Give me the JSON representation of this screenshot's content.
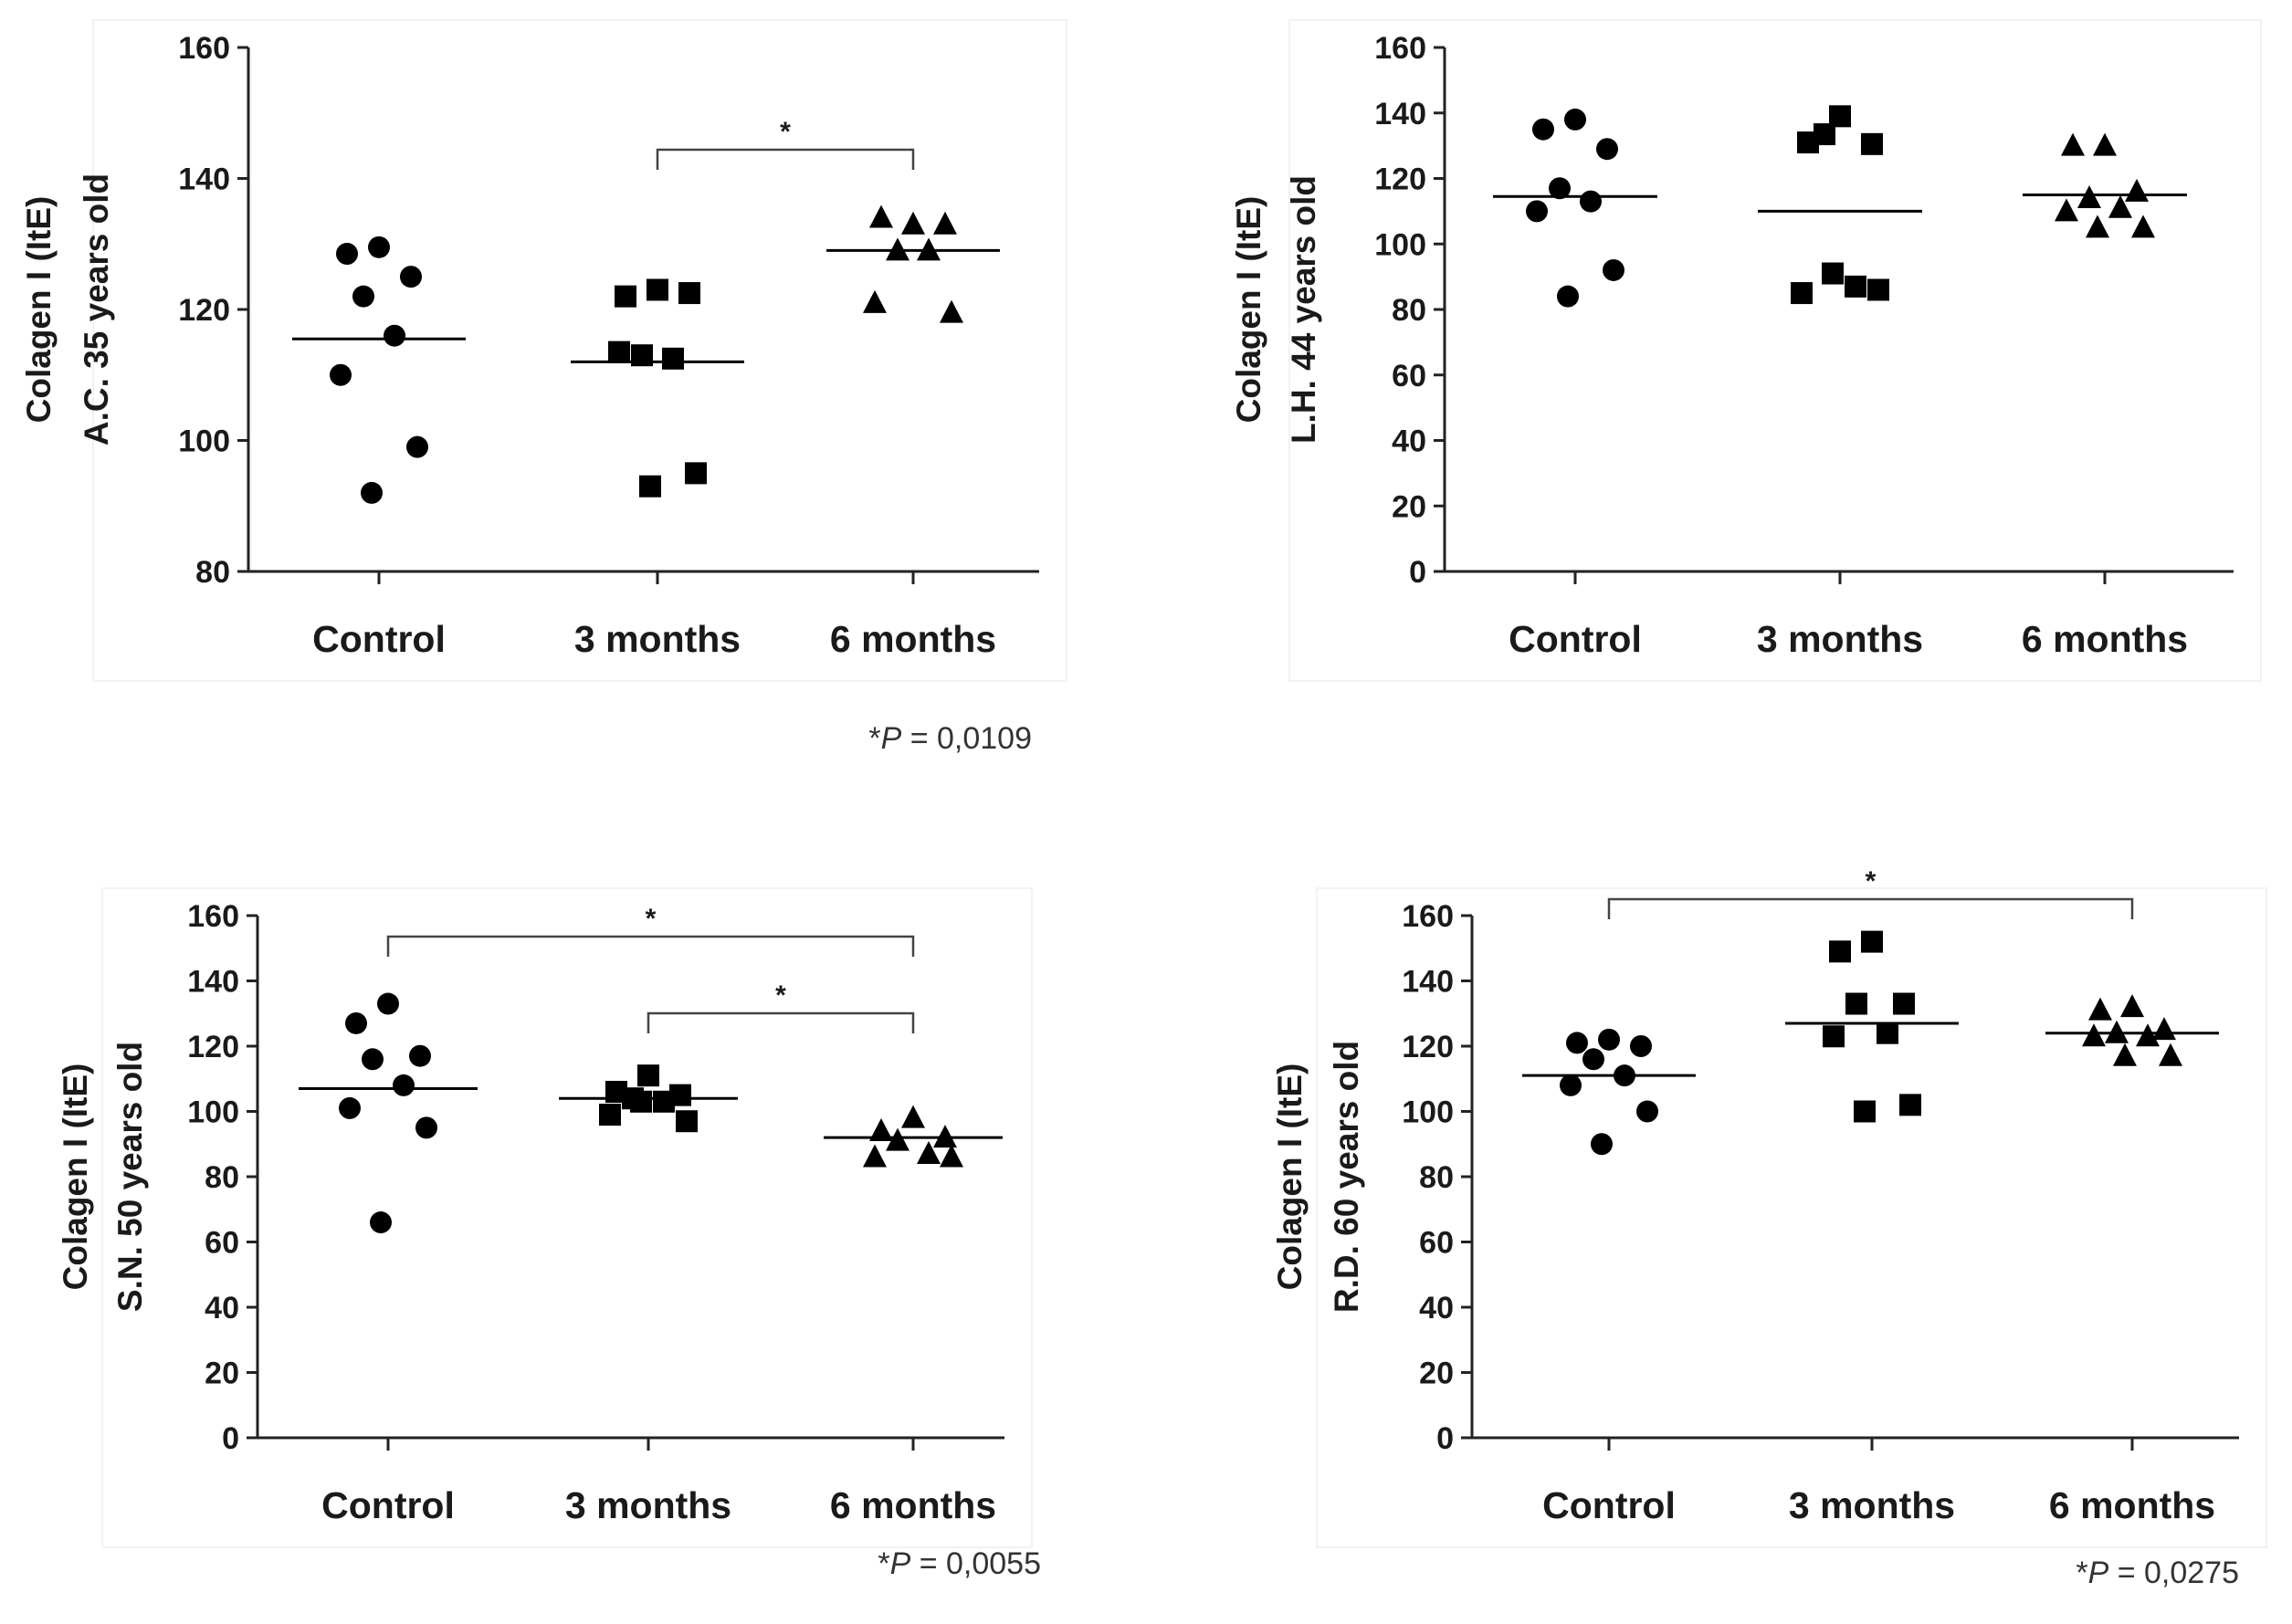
{
  "chart_data": [
    {
      "type": "scatter",
      "ylabel": [
        "Colagen I (ItE)",
        "A.C. 35 years old"
      ],
      "yticks": [
        "80",
        "100",
        "120",
        "140",
        "160"
      ],
      "ylim": [
        80,
        160
      ],
      "categories": [
        "Control",
        "3 months",
        "6 months"
      ],
      "series": [
        {
          "category": "Control",
          "marker": "circle",
          "values": [
            129.5,
            128.5,
            125,
            122,
            116,
            110,
            99,
            92
          ],
          "mean": 115.5
        },
        {
          "category": "3 months",
          "marker": "square",
          "values": [
            123,
            122,
            122.5,
            113,
            112.5,
            113.5,
            95,
            93
          ],
          "mean": 112
        },
        {
          "category": "6 months",
          "marker": "triangle",
          "values": [
            133,
            134,
            133,
            129,
            129,
            121,
            119.5
          ],
          "mean": 129
        }
      ],
      "significance": [
        {
          "from": "3 months",
          "to": "6 months",
          "label": "*"
        }
      ],
      "footnote": {
        "prefix": "*",
        "p": "P",
        "rest": " = 0,0109"
      }
    },
    {
      "type": "scatter",
      "ylabel": [
        "Colagen I (ItE)",
        "L.H. 44  years old"
      ],
      "yticks": [
        "0",
        "20",
        "40",
        "60",
        "80",
        "100",
        "120",
        "140",
        "160"
      ],
      "ylim": [
        0,
        160
      ],
      "categories": [
        "Control",
        "3 months",
        "6 months"
      ],
      "series": [
        {
          "category": "Control",
          "marker": "circle",
          "values": [
            138,
            135,
            129,
            117,
            113,
            110,
            92,
            84
          ],
          "mean": 114.5
        },
        {
          "category": "3 months",
          "marker": "square",
          "values": [
            139,
            131,
            130.5,
            133.5,
            87,
            85,
            86,
            91
          ],
          "mean": 110
        },
        {
          "category": "6 months",
          "marker": "triangle",
          "values": [
            130,
            130,
            116,
            114,
            111,
            110,
            105,
            105
          ],
          "mean": 115
        }
      ],
      "significance": [],
      "footnote": null
    },
    {
      "type": "scatter",
      "ylabel": [
        "Colagen I (ItE)",
        "S.N. 50 years old"
      ],
      "yticks": [
        "0",
        "20",
        "40",
        "60",
        "80",
        "100",
        "120",
        "140",
        "160"
      ],
      "ylim": [
        0,
        160
      ],
      "categories": [
        "Control",
        "3 months",
        "6 months"
      ],
      "series": [
        {
          "category": "Control",
          "marker": "circle",
          "values": [
            133,
            127,
            117,
            116,
            108,
            101,
            95,
            66
          ],
          "mean": 107
        },
        {
          "category": "3 months",
          "marker": "square",
          "values": [
            111,
            106,
            105,
            104,
            103,
            99,
            97,
            103
          ],
          "mean": 104
        },
        {
          "category": "6 months",
          "marker": "triangle",
          "values": [
            98,
            94,
            92,
            91,
            87,
            86,
            86
          ],
          "mean": 92
        }
      ],
      "significance": [
        {
          "from": "Control",
          "to": "6 months",
          "label": "*"
        },
        {
          "from": "3 months",
          "to": "6 months",
          "label": "*"
        }
      ],
      "footnote": {
        "prefix": "*",
        "p": "P",
        "rest": " = 0,0055"
      }
    },
    {
      "type": "scatter",
      "ylabel": [
        "Colagen I (ItE)",
        "R.D. 60 years old"
      ],
      "yticks": [
        "0",
        "20",
        "40",
        "60",
        "80",
        "100",
        "120",
        "140",
        "160"
      ],
      "ylim": [
        0,
        160
      ],
      "categories": [
        "Control",
        "3 months",
        "6 months"
      ],
      "series": [
        {
          "category": "Control",
          "marker": "circle",
          "values": [
            122,
            121,
            120,
            116,
            111,
            108,
            100,
            90
          ],
          "mean": 111
        },
        {
          "category": "3 months",
          "marker": "square",
          "values": [
            152,
            149,
            133,
            133,
            124,
            123,
            102,
            100
          ],
          "mean": 127
        },
        {
          "category": "6 months",
          "marker": "triangle",
          "values": [
            132,
            131,
            125,
            124,
            123,
            123,
            117,
            117
          ],
          "mean": 124
        }
      ],
      "significance": [
        {
          "from": "Control",
          "to": "6 months",
          "label": "*"
        }
      ],
      "footnote": {
        "prefix": "*",
        "p": "P",
        "rest": " = 0,0275"
      }
    }
  ]
}
